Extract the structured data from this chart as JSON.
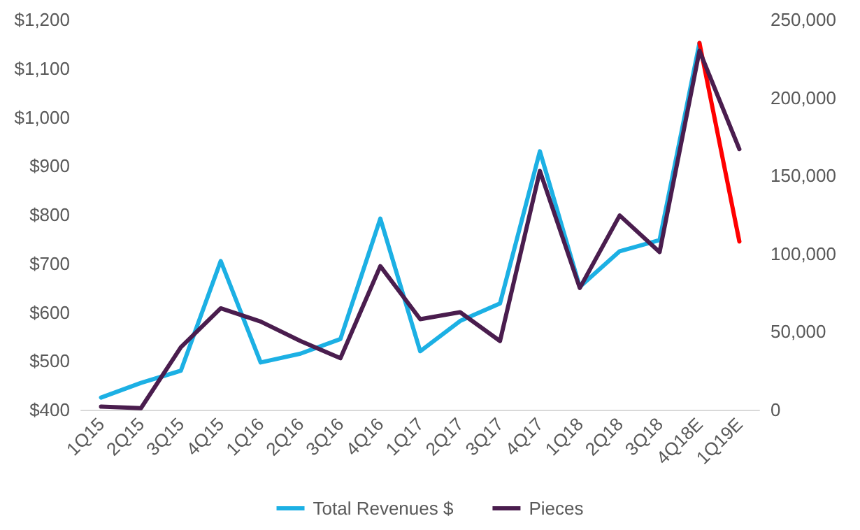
{
  "chart_data": {
    "type": "line",
    "categories": [
      "1Q15",
      "2Q15",
      "3Q15",
      "4Q15",
      "1Q16",
      "2Q16",
      "3Q16",
      "4Q16",
      "1Q17",
      "2Q17",
      "3Q17",
      "4Q17",
      "1Q18",
      "2Q18",
      "3Q18",
      "4Q18E",
      "1Q19E"
    ],
    "series": [
      {
        "name": "Total Revenues $",
        "color": "#1cb0e4",
        "values": [
          425,
          455,
          480,
          705,
          497,
          515,
          545,
          792,
          520,
          582,
          618,
          930,
          652,
          725,
          748,
          1152,
          null
        ]
      },
      {
        "color": "#ff0000",
        "values": [
          null,
          null,
          null,
          null,
          null,
          null,
          null,
          null,
          null,
          null,
          null,
          null,
          null,
          null,
          null,
          1152,
          745
        ]
      },
      {
        "name": "Pieces",
        "color": "#4a1d4e",
        "axis": "y2",
        "values": [
          2000,
          1000,
          40000,
          65000,
          56500,
          44000,
          33000,
          92000,
          58000,
          62500,
          44000,
          153000,
          78000,
          124500,
          101000,
          230000,
          167000
        ]
      }
    ],
    "ylim": [
      400,
      1200
    ],
    "yticks": [
      {
        "value": 400,
        "label": "$400"
      },
      {
        "value": 500,
        "label": "$500"
      },
      {
        "value": 600,
        "label": "$600"
      },
      {
        "value": 700,
        "label": "$700"
      },
      {
        "value": 800,
        "label": "$800"
      },
      {
        "value": 900,
        "label": "$900"
      },
      {
        "value": 1000,
        "label": "$1,000"
      },
      {
        "value": 1100,
        "label": "$1,100"
      },
      {
        "value": 1200,
        "label": "$1,200"
      }
    ],
    "y2lim": [
      0,
      250000
    ],
    "y2ticks": [
      {
        "value": 0,
        "label": "0"
      },
      {
        "value": 50000,
        "label": "50,000"
      },
      {
        "value": 100000,
        "label": "100,000"
      },
      {
        "value": 150000,
        "label": "150,000"
      },
      {
        "value": 200000,
        "label": "200,000"
      },
      {
        "value": 250000,
        "label": "250,000"
      }
    ],
    "grid": false,
    "legend": "bottom",
    "marker": "none",
    "line_style": "solid"
  }
}
